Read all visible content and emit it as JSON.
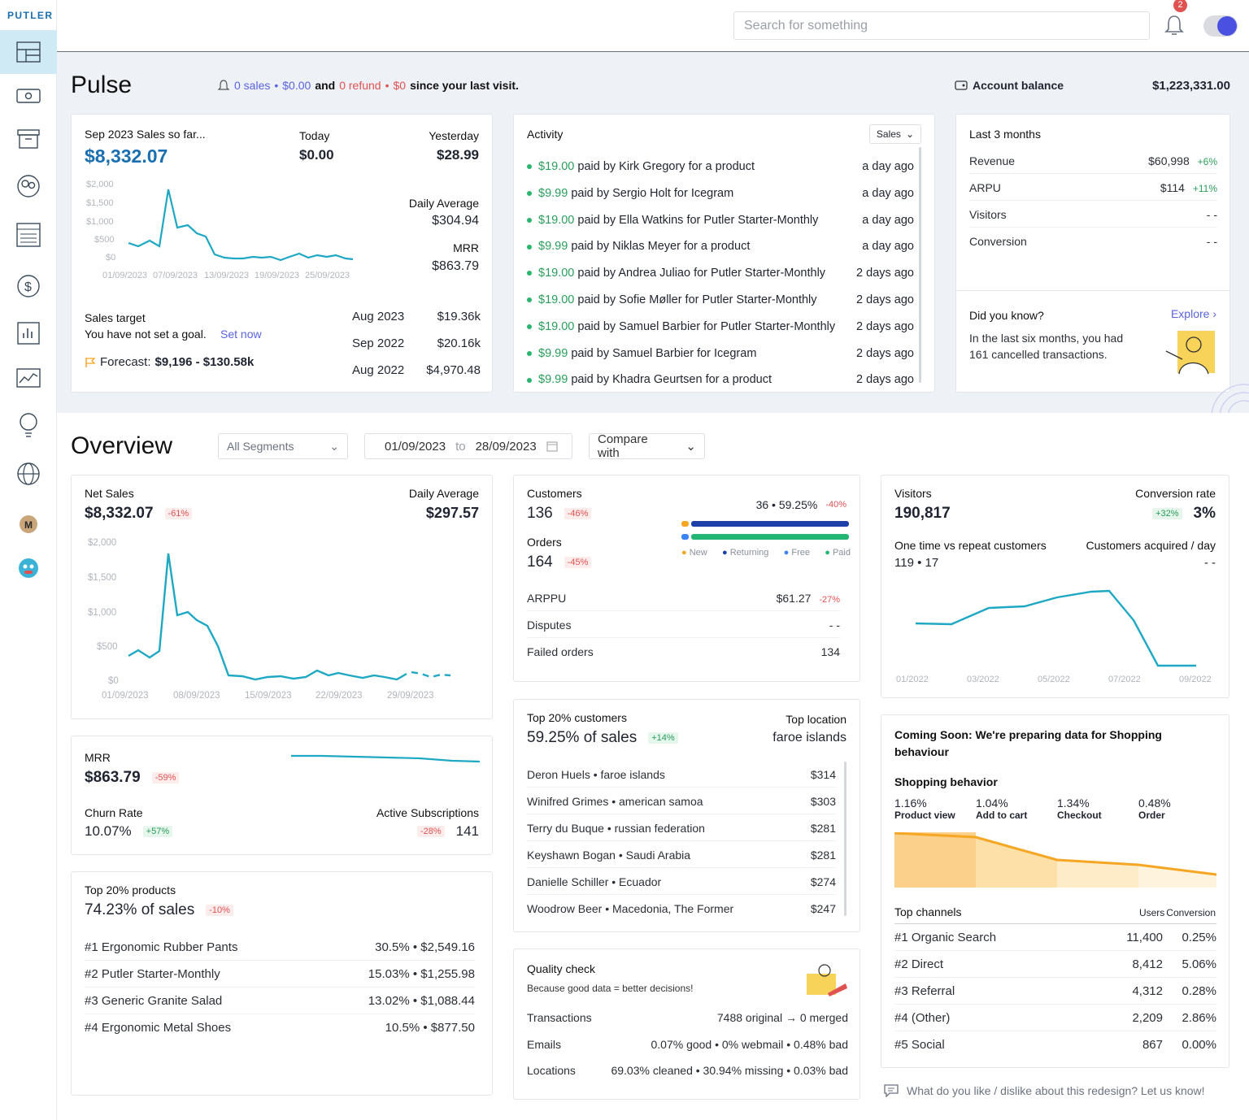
{
  "app": {
    "logo": "PUTLER"
  },
  "topbar": {
    "search_placeholder": "Search for something",
    "notif_count": "2"
  },
  "pulse": {
    "title": "Pulse",
    "since": {
      "sales": "0 sales",
      "sales_amt": "$0.00",
      "and": "and",
      "refund": "0 refund",
      "refund_amt": "$0",
      "suffix": "since your last visit."
    },
    "balance_label": "Account balance",
    "balance": "$1,223,331.00",
    "sales_card": {
      "title": "Sep 2023 Sales so far...",
      "total": "$8,332.07",
      "today_label": "Today",
      "today": "$0.00",
      "yesterday_label": "Yesterday",
      "yesterday": "$28.99",
      "daily_avg_label": "Daily Average",
      "daily_avg": "$304.94",
      "mrr_label": "MRR",
      "mrr": "$863.79",
      "target_label": "Sales target",
      "target_text": "You have not set a goal.",
      "set_now": "Set now",
      "forecast_label": "Forecast:",
      "forecast": "$9,196 - $130.58k",
      "history": [
        {
          "m": "Aug 2023",
          "v": "$19.36k"
        },
        {
          "m": "Sep 2022",
          "v": "$20.16k"
        },
        {
          "m": "Aug 2022",
          "v": "$4,970.48"
        }
      ],
      "yticks": [
        "$2,000",
        "$1,500",
        "$1,000",
        "$500",
        "$0"
      ],
      "xticks": [
        "01/09/2023",
        "07/09/2023",
        "13/09/2023",
        "19/09/2023",
        "25/09/2023"
      ]
    },
    "activity": {
      "title": "Activity",
      "filter": "Sales",
      "items": [
        {
          "amt": "$19.00",
          "text": "paid by Kirk Gregory for a product",
          "when": "a day ago"
        },
        {
          "amt": "$9.99",
          "text": "paid by Sergio Holt for Icegram",
          "when": "a day ago"
        },
        {
          "amt": "$19.00",
          "text": "paid by Ella Watkins for Putler Starter-Monthly",
          "when": "a day ago"
        },
        {
          "amt": "$9.99",
          "text": "paid by Niklas Meyer for a product",
          "when": "a day ago"
        },
        {
          "amt": "$19.00",
          "text": "paid by Andrea Juliao for Putler Starter-Monthly",
          "when": "2 days ago"
        },
        {
          "amt": "$19.00",
          "text": "paid by Sofie Møller for Putler Starter-Monthly",
          "when": "2 days ago"
        },
        {
          "amt": "$19.00",
          "text": "paid by Samuel Barbier for Putler Starter-Monthly",
          "when": "2 days ago"
        },
        {
          "amt": "$9.99",
          "text": "paid by Samuel Barbier for Icegram",
          "when": "2 days ago"
        },
        {
          "amt": "$9.99",
          "text": "paid by Khadra Geurtsen for a product",
          "when": "2 days ago"
        }
      ]
    },
    "last3": {
      "title": "Last 3 months",
      "rows": [
        {
          "k": "Revenue",
          "v": "$60,998",
          "d": "+6%"
        },
        {
          "k": "ARPU",
          "v": "$114",
          "d": "+11%"
        },
        {
          "k": "Visitors",
          "v": "- -",
          "d": ""
        },
        {
          "k": "Conversion",
          "v": "- -",
          "d": ""
        }
      ]
    },
    "dyk": {
      "title": "Did you know?",
      "explore": "Explore ›",
      "text": "In the last six months, you had 161 cancelled transactions."
    }
  },
  "overview": {
    "title": "Overview",
    "segment": "All Segments",
    "date_from": "01/09/2023",
    "to": "to",
    "date_to": "28/09/2023",
    "compare": "Compare with",
    "net": {
      "label": "Net Sales",
      "value": "$8,332.07",
      "delta": "-61%",
      "avg_label": "Daily Average",
      "avg": "$297.57",
      "yticks": [
        "$2,000",
        "$1,500",
        "$1,000",
        "$500",
        "$0"
      ],
      "xticks": [
        "01/09/2023",
        "08/09/2023",
        "15/09/2023",
        "22/09/2023",
        "29/09/2023"
      ]
    },
    "mrr": {
      "label": "MRR",
      "value": "$863.79",
      "delta": "-59%",
      "churn_label": "Churn Rate",
      "churn": "10.07%",
      "churn_delta": "+57%",
      "subs_label": "Active Subscriptions",
      "subs_delta": "-28%",
      "subs": "141"
    },
    "products": {
      "label": "Top 20% products",
      "value": "74.23% of sales",
      "delta": "-10%",
      "rows": [
        {
          "n": "#1 Ergonomic Rubber Pants",
          "v": "30.5% • $2,549.16"
        },
        {
          "n": "#2 Putler Starter-Monthly",
          "v": "15.03% • $1,255.98"
        },
        {
          "n": "#3 Generic Granite Salad",
          "v": "13.02% • $1,088.44"
        },
        {
          "n": "#4 Ergonomic Metal Shoes",
          "v": "10.5% • $877.50"
        }
      ]
    },
    "customers": {
      "label": "Customers",
      "value": "136",
      "delta": "-46%",
      "orders_label": "Orders",
      "orders": "164",
      "orders_delta": "-45%",
      "split": "36 • 59.25%",
      "split_delta": "-40%",
      "legend": [
        "New",
        "Returning",
        "Free",
        "Paid"
      ],
      "rows": [
        {
          "k": "ARPPU",
          "v": "$61.27",
          "d": "-27%"
        },
        {
          "k": "Disputes",
          "v": "- -",
          "d": ""
        },
        {
          "k": "Failed orders",
          "v": "134",
          "d": ""
        }
      ]
    },
    "topcust": {
      "label": "Top 20% customers",
      "value": "59.25% of sales",
      "delta": "+14%",
      "loc_label": "Top location",
      "loc": "faroe islands",
      "rows": [
        {
          "n": "Deron Huels • faroe islands",
          "v": "$314"
        },
        {
          "n": "Winifred Grimes • american samoa",
          "v": "$303"
        },
        {
          "n": "Terry du Buque • russian federation",
          "v": "$281"
        },
        {
          "n": "Keyshawn Bogan • Saudi Arabia",
          "v": "$281"
        },
        {
          "n": "Danielle Schiller • Ecuador",
          "v": "$274"
        },
        {
          "n": "Woodrow Beer • Macedonia, The Former",
          "v": "$247"
        }
      ]
    },
    "quality": {
      "label": "Quality check",
      "sub": "Because good data = better decisions!",
      "rows": [
        {
          "k": "Transactions",
          "v": "7488 original → 0 merged"
        },
        {
          "k": "Emails",
          "v": "0.07% good • 0% webmail • 0.48% bad"
        },
        {
          "k": "Locations",
          "v": "69.03% cleaned • 30.94% missing • 0.03% bad"
        }
      ]
    },
    "visitors": {
      "label": "Visitors",
      "value": "190,817",
      "conv_label": "Conversion rate",
      "conv_delta": "+32%",
      "conv": "3%",
      "otvr_label": "One time vs repeat customers",
      "otvr": "119 • 17",
      "cad_label": "Customers acquired / day",
      "cad": "- -",
      "xticks": [
        "01/2022",
        "03/2022",
        "05/2022",
        "07/2022",
        "09/2022"
      ]
    },
    "shopping": {
      "soon": "Coming Soon: We're preparing data for Shopping behaviour",
      "label": "Shopping behavior",
      "steps": [
        {
          "p": "1.16%",
          "n": "Product view"
        },
        {
          "p": "1.04%",
          "n": "Add to cart"
        },
        {
          "p": "1.34%",
          "n": "Checkout"
        },
        {
          "p": "0.48%",
          "n": "Order"
        }
      ],
      "channels_label": "Top channels",
      "col1": "Users",
      "col2": "Conversion",
      "channels": [
        {
          "n": "#1 Organic Search",
          "u": "11,400",
          "c": "0.25%"
        },
        {
          "n": "#2 Direct",
          "u": "8,412",
          "c": "5.06%"
        },
        {
          "n": "#3 Referral",
          "u": "4,312",
          "c": "0.28%"
        },
        {
          "n": "#4 (Other)",
          "u": "2,209",
          "c": "2.86%"
        },
        {
          "n": "#5 Social",
          "u": "867",
          "c": "0.00%"
        }
      ]
    },
    "feedback": "What do you like / dislike about this redesign? Let us know!"
  }
}
